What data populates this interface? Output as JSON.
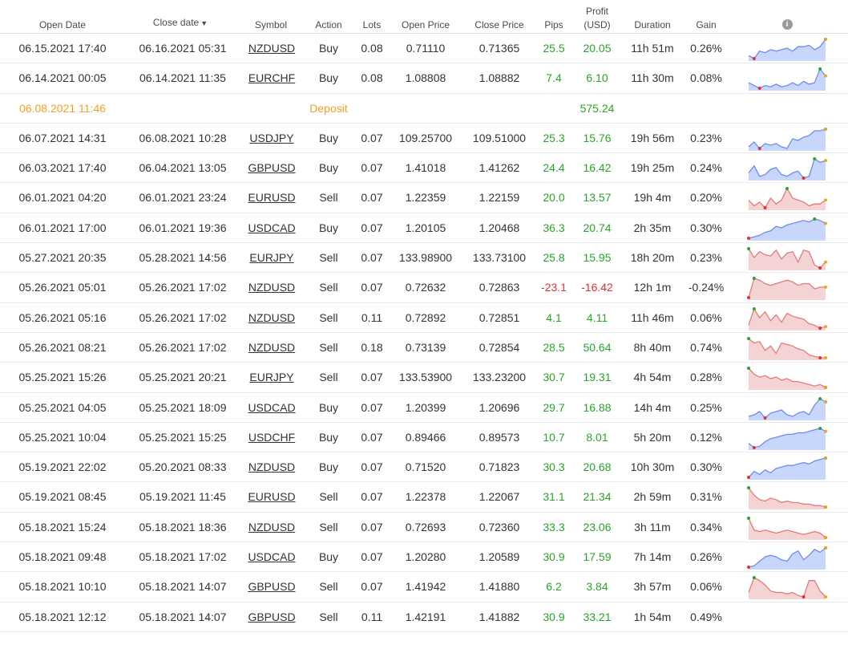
{
  "headers": {
    "open_date": "Open Date",
    "close_date": "Close date",
    "close_sort": "▼",
    "symbol": "Symbol",
    "action": "Action",
    "lots": "Lots",
    "open_price": "Open Price",
    "close_price": "Close Price",
    "pips": "Pips",
    "profit_l1": "Profit",
    "profit_l2": "(USD)",
    "duration": "Duration",
    "gain": "Gain",
    "info_icon": "i"
  },
  "colors": {
    "positive": "#2aa52a",
    "negative": "#e0322f",
    "deposit": "#f0a224",
    "buy_fill": "#c9d6fb",
    "buy_line": "#6b8cf0",
    "sell_fill": "#f3d3d3",
    "sell_line": "#e27c7c"
  },
  "rows": [
    {
      "open": "06.15.2021 17:40",
      "close": "06.16.2021 05:31",
      "symbol": "NZDUSD",
      "action": "Buy",
      "lots": "0.08",
      "open_price": "0.71110",
      "close_price": "0.71365",
      "pips": "25.5",
      "profit": "20.05",
      "duration": "11h 51m",
      "gain": "0.26%",
      "type": "buy",
      "spark": [
        3,
        1,
        6,
        5,
        7,
        6,
        7,
        8,
        6,
        9,
        9,
        10,
        7,
        9,
        14
      ]
    },
    {
      "open": "06.14.2021 00:05",
      "close": "06.14.2021 11:35",
      "symbol": "EURCHF",
      "action": "Buy",
      "lots": "0.08",
      "open_price": "1.08808",
      "close_price": "1.08882",
      "pips": "7.4",
      "profit": "6.10",
      "duration": "11h 30m",
      "gain": "0.08%",
      "type": "buy",
      "spark": [
        5,
        3,
        1,
        3,
        2,
        4,
        2,
        3,
        5,
        3,
        6,
        4,
        5,
        15,
        10
      ]
    },
    {
      "deposit": true,
      "open": "06.08.2021 11:46",
      "action": "Deposit",
      "profit": "575.24"
    },
    {
      "open": "06.07.2021 14:31",
      "close": "06.08.2021 10:28",
      "symbol": "USDJPY",
      "action": "Buy",
      "lots": "0.07",
      "open_price": "109.25700",
      "close_price": "109.51000",
      "pips": "25.3",
      "profit": "15.76",
      "duration": "19h 56m",
      "gain": "0.23%",
      "type": "buy",
      "spark": [
        3,
        6,
        2,
        5,
        4,
        5,
        3,
        2,
        8,
        7,
        9,
        10,
        13,
        13,
        14
      ]
    },
    {
      "open": "06.03.2021 17:40",
      "close": "06.04.2021 13:05",
      "symbol": "GBPUSD",
      "action": "Buy",
      "lots": "0.07",
      "open_price": "1.41018",
      "close_price": "1.41262",
      "pips": "24.4",
      "profit": "16.42",
      "duration": "19h 25m",
      "gain": "0.24%",
      "type": "buy",
      "spark": [
        5,
        9,
        3,
        4,
        7,
        8,
        4,
        3,
        5,
        6,
        2,
        3,
        13,
        11,
        12
      ]
    },
    {
      "open": "06.01.2021 04:20",
      "close": "06.01.2021 23:24",
      "symbol": "EURUSD",
      "action": "Sell",
      "lots": "0.07",
      "open_price": "1.22359",
      "close_price": "1.22159",
      "pips": "20.0",
      "profit": "13.57",
      "duration": "19h 4m",
      "gain": "0.20%",
      "type": "sell",
      "spark": [
        6,
        3,
        5,
        2,
        7,
        4,
        6,
        12,
        7,
        6,
        5,
        3,
        4,
        4,
        6
      ]
    },
    {
      "open": "06.01.2021 17:00",
      "close": "06.01.2021 19:36",
      "symbol": "USDCAD",
      "action": "Buy",
      "lots": "0.07",
      "open_price": "1.20105",
      "close_price": "1.20468",
      "pips": "36.3",
      "profit": "20.74",
      "duration": "2h 35m",
      "gain": "0.30%",
      "type": "buy",
      "spark": [
        1,
        2,
        3,
        5,
        6,
        9,
        8,
        10,
        11,
        12,
        13,
        12,
        14,
        13,
        11
      ]
    },
    {
      "open": "05.27.2021 20:35",
      "close": "05.28.2021 14:56",
      "symbol": "EURJPY",
      "action": "Sell",
      "lots": "0.07",
      "open_price": "133.98900",
      "close_price": "133.73100",
      "pips": "25.8",
      "profit": "15.95",
      "duration": "18h 20m",
      "gain": "0.23%",
      "type": "sell",
      "spark": [
        14,
        8,
        12,
        10,
        9,
        13,
        7,
        11,
        12,
        5,
        13,
        12,
        3,
        1,
        5
      ]
    },
    {
      "open": "05.26.2021 05:01",
      "close": "05.26.2021 17:02",
      "symbol": "NZDUSD",
      "action": "Sell",
      "lots": "0.07",
      "open_price": "0.72632",
      "close_price": "0.72863",
      "pips": "-23.1",
      "profit": "-16.42",
      "duration": "12h 1m",
      "gain": "-0.24%",
      "type": "sell",
      "spark": [
        1,
        12,
        11,
        9,
        8,
        9,
        10,
        11,
        10,
        8,
        9,
        9,
        6,
        7,
        7
      ]
    },
    {
      "open": "05.26.2021 05:16",
      "close": "05.26.2021 17:02",
      "symbol": "NZDUSD",
      "action": "Sell",
      "lots": "0.11",
      "open_price": "0.72892",
      "close_price": "0.72851",
      "pips": "4.1",
      "profit": "4.11",
      "duration": "11h 46m",
      "gain": "0.06%",
      "type": "sell",
      "spark": [
        3,
        14,
        8,
        12,
        6,
        10,
        5,
        11,
        9,
        8,
        7,
        4,
        3,
        1,
        2
      ]
    },
    {
      "open": "05.26.2021 08:21",
      "close": "05.26.2021 17:02",
      "symbol": "NZDUSD",
      "action": "Sell",
      "lots": "0.18",
      "open_price": "0.73139",
      "close_price": "0.72854",
      "pips": "28.5",
      "profit": "50.64",
      "duration": "8h 40m",
      "gain": "0.74%",
      "type": "sell",
      "spark": [
        14,
        11,
        12,
        6,
        9,
        4,
        11,
        10,
        9,
        7,
        6,
        3,
        2,
        1,
        1
      ]
    },
    {
      "open": "05.25.2021 15:26",
      "close": "05.25.2021 20:21",
      "symbol": "EURJPY",
      "action": "Sell",
      "lots": "0.07",
      "open_price": "133.53900",
      "close_price": "133.23200",
      "pips": "30.7",
      "profit": "19.31",
      "duration": "4h 54m",
      "gain": "0.28%",
      "type": "sell",
      "spark": [
        14,
        10,
        8,
        9,
        7,
        8,
        6,
        7,
        5,
        5,
        4,
        3,
        2,
        3,
        1
      ]
    },
    {
      "open": "05.25.2021 04:05",
      "close": "05.25.2021 18:09",
      "symbol": "USDCAD",
      "action": "Buy",
      "lots": "0.07",
      "open_price": "1.20399",
      "close_price": "1.20696",
      "pips": "29.7",
      "profit": "16.88",
      "duration": "14h 4m",
      "gain": "0.25%",
      "type": "buy",
      "spark": [
        3,
        4,
        6,
        2,
        5,
        6,
        7,
        4,
        3,
        5,
        6,
        4,
        10,
        14,
        12
      ]
    },
    {
      "open": "05.25.2021 10:04",
      "close": "05.25.2021 15:25",
      "symbol": "USDCHF",
      "action": "Buy",
      "lots": "0.07",
      "open_price": "0.89466",
      "close_price": "0.89573",
      "pips": "10.7",
      "profit": "8.01",
      "duration": "5h 20m",
      "gain": "0.12%",
      "type": "buy",
      "spark": [
        4,
        1,
        2,
        5,
        7,
        8,
        9,
        10,
        10,
        11,
        11,
        12,
        13,
        14,
        12
      ]
    },
    {
      "open": "05.19.2021 22:02",
      "close": "05.20.2021 08:33",
      "symbol": "NZDUSD",
      "action": "Buy",
      "lots": "0.07",
      "open_price": "0.71520",
      "close_price": "0.71823",
      "pips": "30.3",
      "profit": "20.68",
      "duration": "10h 30m",
      "gain": "0.30%",
      "type": "buy",
      "spark": [
        1,
        5,
        3,
        6,
        4,
        7,
        8,
        9,
        9,
        10,
        11,
        10,
        12,
        13,
        14
      ]
    },
    {
      "open": "05.19.2021 08:45",
      "close": "05.19.2021 11:45",
      "symbol": "EURUSD",
      "action": "Sell",
      "lots": "0.07",
      "open_price": "1.22378",
      "close_price": "1.22067",
      "pips": "31.1",
      "profit": "21.34",
      "duration": "2h 59m",
      "gain": "0.31%",
      "type": "sell",
      "spark": [
        14,
        9,
        6,
        5,
        7,
        6,
        4,
        5,
        4,
        4,
        3,
        3,
        2,
        2,
        1
      ]
    },
    {
      "open": "05.18.2021 15:24",
      "close": "05.18.2021 18:36",
      "symbol": "NZDUSD",
      "action": "Sell",
      "lots": "0.07",
      "open_price": "0.72693",
      "close_price": "0.72360",
      "pips": "33.3",
      "profit": "23.06",
      "duration": "3h 11m",
      "gain": "0.34%",
      "type": "sell",
      "spark": [
        14,
        6,
        5,
        6,
        5,
        4,
        5,
        6,
        5,
        4,
        3,
        4,
        5,
        4,
        1
      ]
    },
    {
      "open": "05.18.2021 09:48",
      "close": "05.18.2021 17:02",
      "symbol": "USDCAD",
      "action": "Buy",
      "lots": "0.07",
      "open_price": "1.20280",
      "close_price": "1.20589",
      "pips": "30.9",
      "profit": "17.59",
      "duration": "7h 14m",
      "gain": "0.26%",
      "type": "buy",
      "spark": [
        1,
        2,
        5,
        8,
        9,
        8,
        6,
        5,
        10,
        12,
        6,
        9,
        13,
        11,
        14
      ]
    },
    {
      "open": "05.18.2021 10:10",
      "close": "05.18.2021 14:07",
      "symbol": "GBPUSD",
      "action": "Sell",
      "lots": "0.07",
      "open_price": "1.41942",
      "close_price": "1.41880",
      "pips": "6.2",
      "profit": "3.84",
      "duration": "3h 57m",
      "gain": "0.06%",
      "type": "sell",
      "spark": [
        4,
        14,
        12,
        9,
        5,
        4,
        4,
        3,
        4,
        2,
        1,
        12,
        12,
        5,
        1
      ]
    },
    {
      "open": "05.18.2021 12:12",
      "close": "05.18.2021 14:07",
      "symbol": "GBPUSD",
      "action": "Sell",
      "lots": "0.11",
      "open_price": "1.42191",
      "close_price": "1.41882",
      "pips": "30.9",
      "profit": "33.21",
      "duration": "1h 54m",
      "gain": "0.49%",
      "type": "none"
    }
  ]
}
